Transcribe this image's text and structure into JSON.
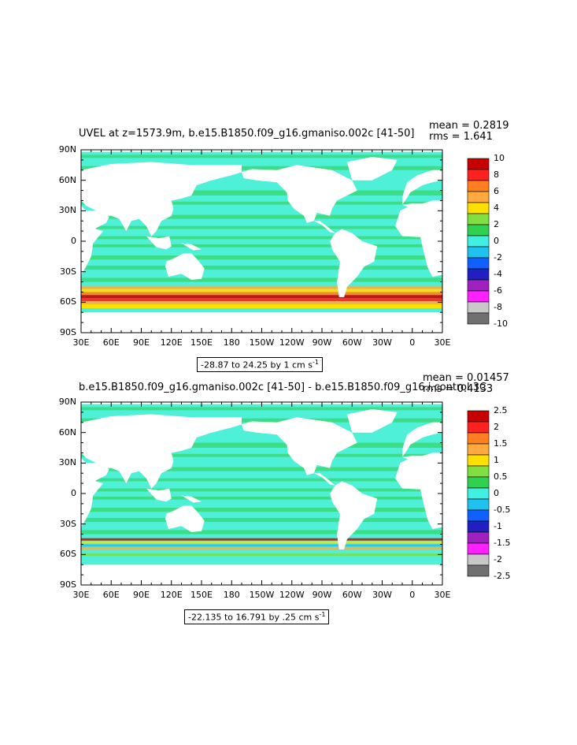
{
  "panels": [
    {
      "title": "UVEL at z=1573.9m, b.e15.B1850.f09_g16.gmaniso.002c [41-50]",
      "stats": {
        "mean": "mean = 0.2819",
        "rms": "rms = 1.641"
      },
      "range_text": "-28.87 to 24.25 by 1 cm s",
      "range_sup": "-1",
      "lat_labels": [
        "90N",
        "60N",
        "30N",
        "0",
        "30S",
        "60S",
        "90S"
      ],
      "lon_labels": [
        "30E",
        "60E",
        "90E",
        "120E",
        "150E",
        "180",
        "150W",
        "120W",
        "90W",
        "60W",
        "30W",
        "0",
        "30E"
      ],
      "colorbar_labels": [
        "10",
        "8",
        "6",
        "4",
        "2",
        "0",
        "-2",
        "-4",
        "-6",
        "-8",
        "-10"
      ]
    },
    {
      "title": "b.e15.B1850.f09_g16.gmaniso.002c [41-50] - b.e15.B1850.f09_g16.i.control.3C",
      "stats": {
        "mean": "mean = 0.01457",
        "rms": "rms = 0.4133"
      },
      "range_text": "-22.135 to 16.791 by .25 cm s",
      "range_sup": "-1",
      "lat_labels": [
        "90N",
        "60N",
        "30N",
        "0",
        "30S",
        "60S",
        "90S"
      ],
      "lon_labels": [
        "30E",
        "60E",
        "90E",
        "120E",
        "150E",
        "180",
        "150W",
        "120W",
        "90W",
        "60W",
        "30W",
        "0",
        "30E"
      ],
      "colorbar_labels": [
        "2.5",
        "2",
        "1.5",
        "1",
        "0.5",
        "0",
        "-0.5",
        "-1",
        "-1.5",
        "-2",
        "-2.5"
      ]
    }
  ],
  "colors": {
    "ocean_main": "#4ff0d8",
    "ocean_band": "#39d97a",
    "land": "#ffffff",
    "colorbar": [
      "#c80000",
      "#ff2020",
      "#ff7f20",
      "#ffaa40",
      "#ffe000",
      "#80e040",
      "#30d050",
      "#40f0e0",
      "#20c0f0",
      "#1060ff",
      "#2020c0",
      "#a020c0",
      "#ff20ff",
      "#c8c8c8",
      "#707070"
    ]
  }
}
